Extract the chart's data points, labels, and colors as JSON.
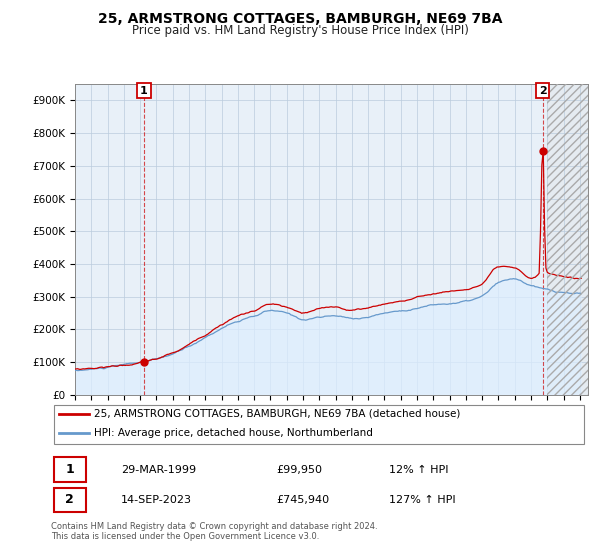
{
  "title": "25, ARMSTRONG COTTAGES, BAMBURGH, NE69 7BA",
  "subtitle": "Price paid vs. HM Land Registry's House Price Index (HPI)",
  "property_label": "25, ARMSTRONG COTTAGES, BAMBURGH, NE69 7BA (detached house)",
  "hpi_label": "HPI: Average price, detached house, Northumberland",
  "property_color": "#cc0000",
  "hpi_color": "#6699cc",
  "hpi_fill_color": "#ddeeff",
  "background_color": "#ffffff",
  "chart_bg_color": "#e8f0f8",
  "grid_color": "#bbccdd",
  "annotation1_date": "29-MAR-1999",
  "annotation1_price": "£99,950",
  "annotation1_hpi": "12% ↑ HPI",
  "annotation2_date": "14-SEP-2023",
  "annotation2_price": "£745,940",
  "annotation2_hpi": "127% ↑ HPI",
  "footer": "Contains HM Land Registry data © Crown copyright and database right 2024.\nThis data is licensed under the Open Government Licence v3.0.",
  "ylim": [
    0,
    950000
  ],
  "yticks": [
    0,
    100000,
    200000,
    300000,
    400000,
    500000,
    600000,
    700000,
    800000,
    900000
  ],
  "ytick_labels": [
    "£0",
    "£100K",
    "£200K",
    "£300K",
    "£400K",
    "£500K",
    "£600K",
    "£700K",
    "£800K",
    "£900K"
  ],
  "sale1_x": 1999.24,
  "sale1_price": 99950,
  "sale2_x": 2023.71,
  "sale2_price": 745940,
  "xlim_left": 1995.0,
  "xlim_right": 2026.5,
  "hatch_start": 2024.0
}
